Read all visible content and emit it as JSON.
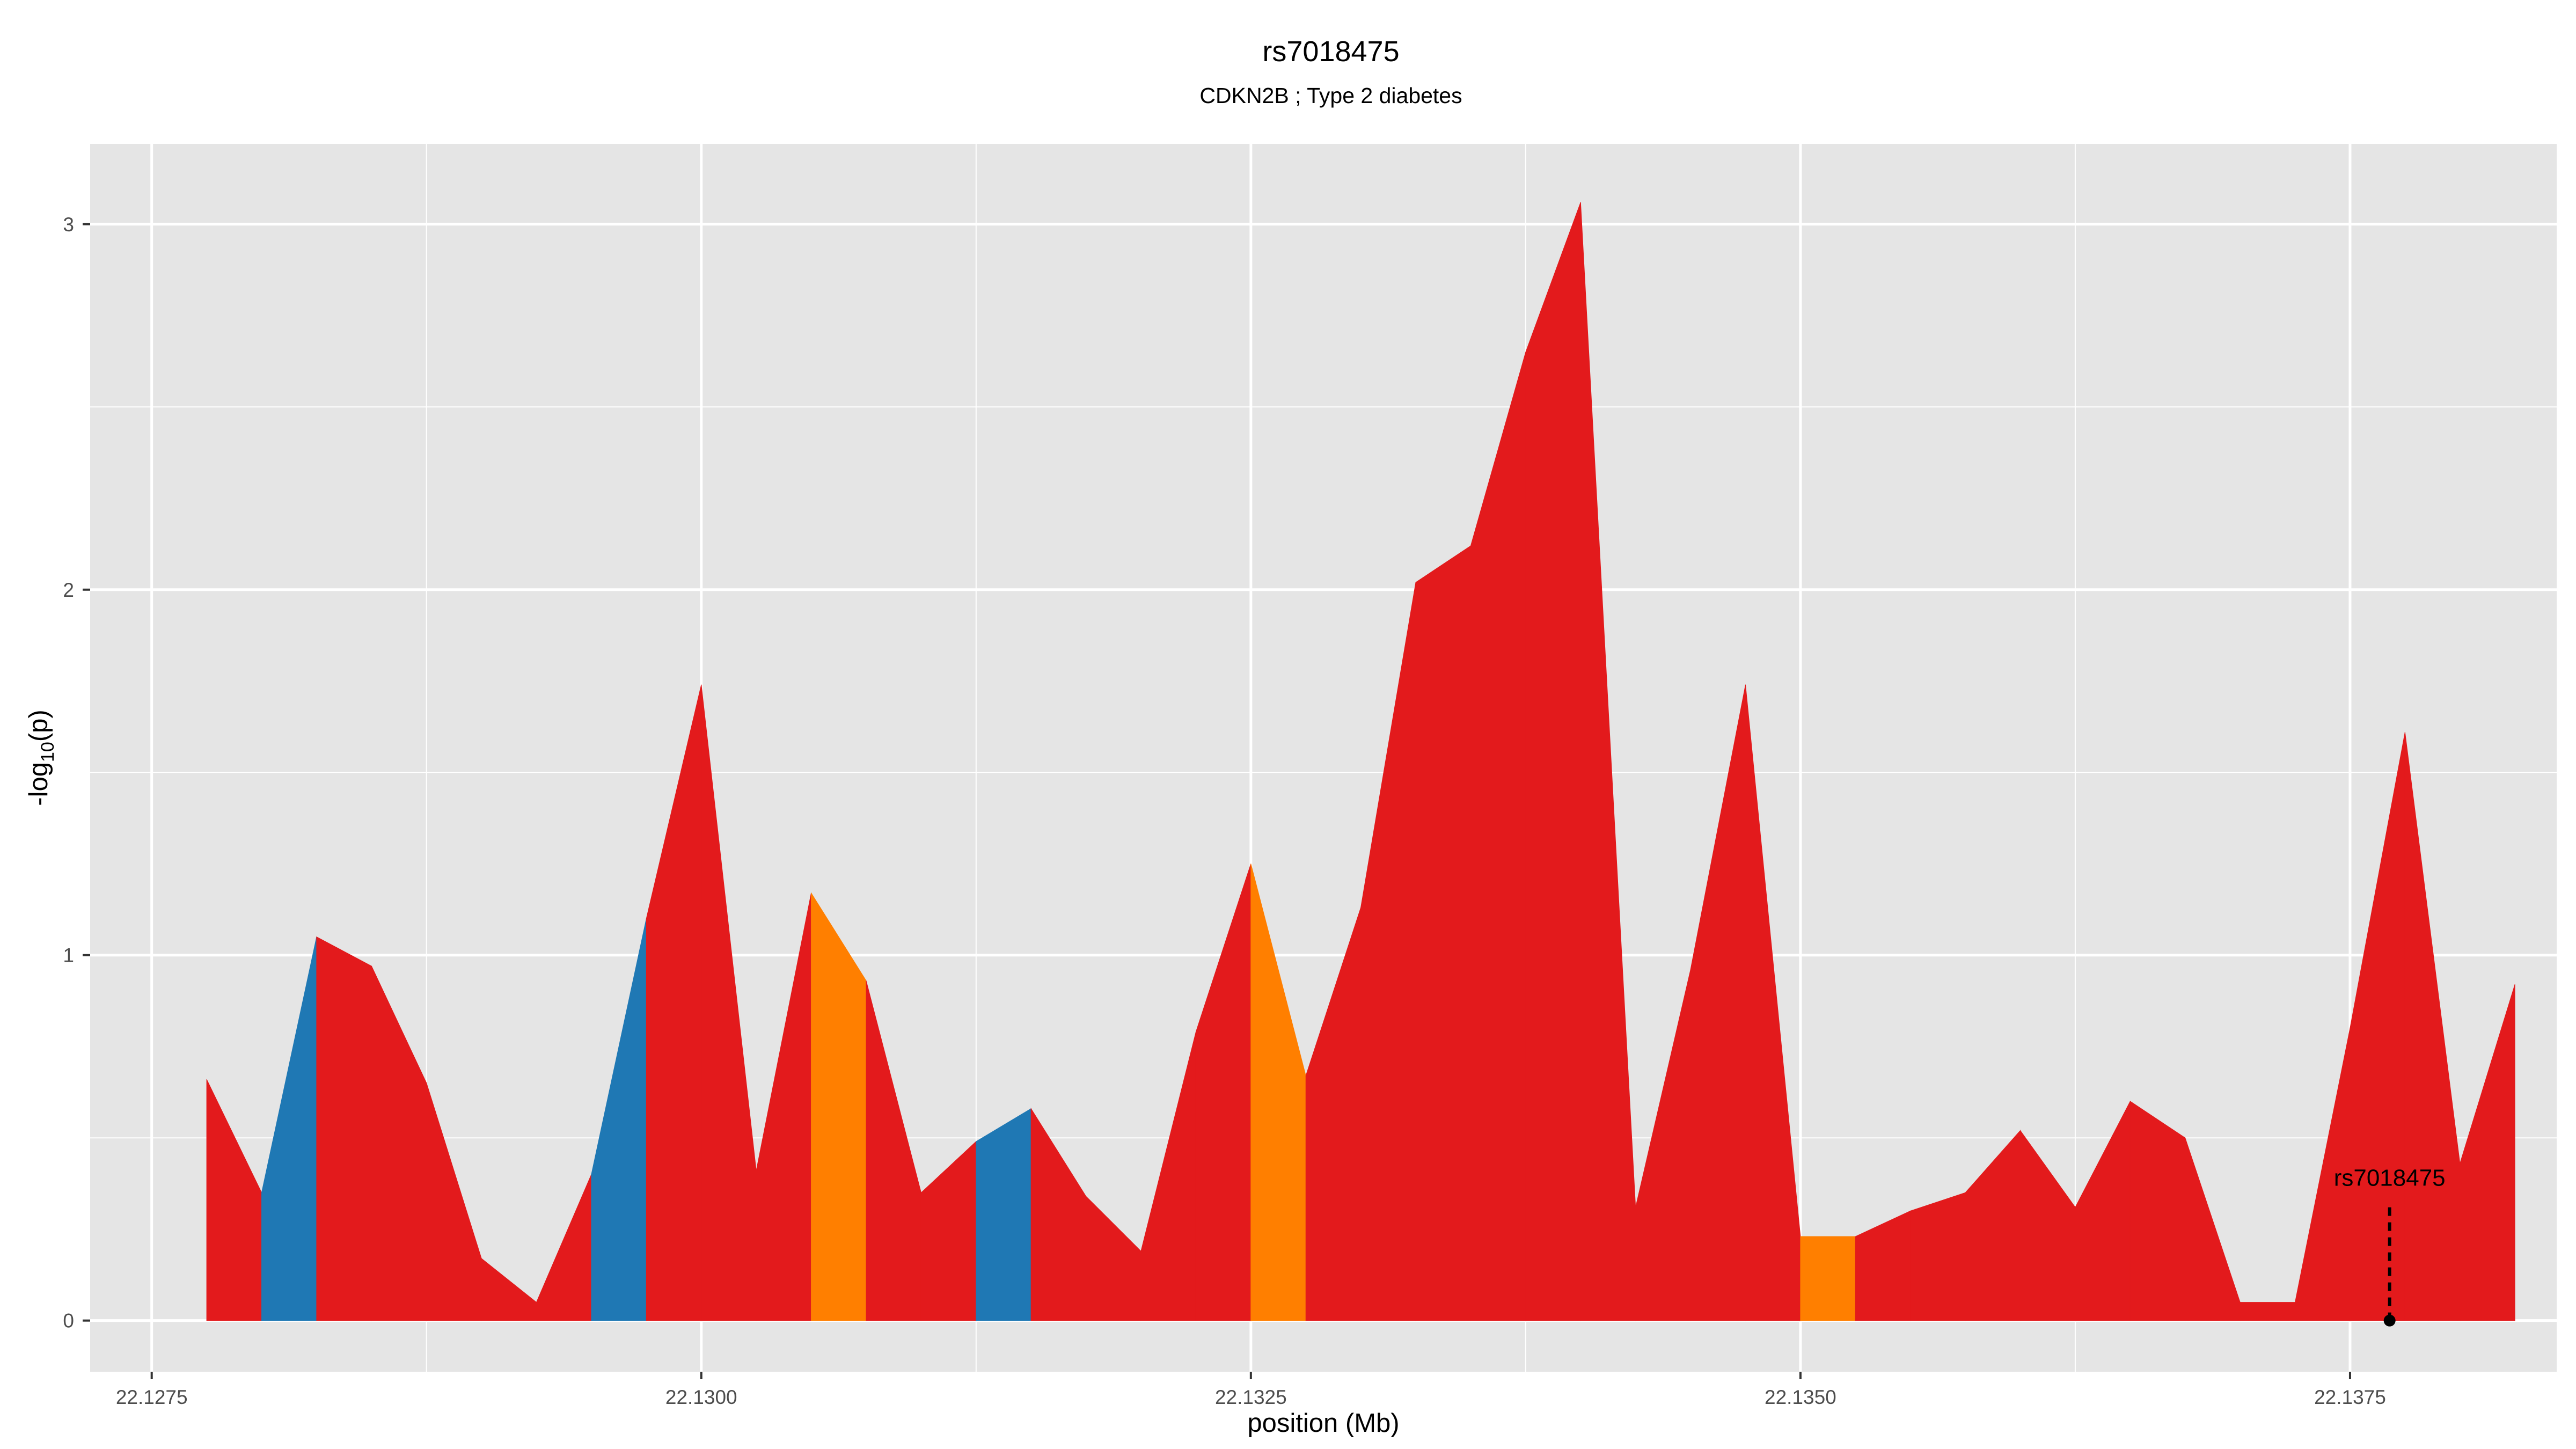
{
  "chart_data": {
    "type": "area",
    "title": "rs7018475",
    "subtitle": "CDKN2B ; Type 2 diabetes",
    "xlabel": "position (Mb)",
    "ylabel_parts": {
      "pre": "-log",
      "sub": "10",
      "post": "(p)"
    },
    "xlim": [
      22.12722,
      22.13844
    ],
    "ylim": [
      -0.14,
      3.22
    ],
    "x_ticks": [
      22.1275,
      22.13,
      22.1325,
      22.135,
      22.1375
    ],
    "x_tick_labels": [
      "22.1275",
      "22.1300",
      "22.1325",
      "22.1350",
      "22.1375"
    ],
    "y_ticks": [
      0,
      1,
      2,
      3
    ],
    "y_tick_labels": [
      "0",
      "1",
      "2",
      "3"
    ],
    "grid": true,
    "colors": {
      "red": "#e31a1c",
      "blue": "#1f78b4",
      "orange": "#ff7f00",
      "panel": "#e5e5e5",
      "grid": "#ffffff"
    },
    "x": [
      22.12775,
      22.128,
      22.12825,
      22.1285,
      22.12875,
      22.129,
      22.12925,
      22.1295,
      22.12975,
      22.13,
      22.13025,
      22.1305,
      22.13075,
      22.131,
      22.13125,
      22.1315,
      22.13175,
      22.132,
      22.13225,
      22.1325,
      22.13275,
      22.133,
      22.13325,
      22.1335,
      22.13375,
      22.134,
      22.13425,
      22.1345,
      22.13475,
      22.135,
      22.13525,
      22.1355,
      22.13575,
      22.136,
      22.13625,
      22.1365,
      22.13675,
      22.137,
      22.13725,
      22.1375,
      22.13775,
      22.138,
      22.13825
    ],
    "y": [
      0.66,
      0.35,
      1.05,
      0.97,
      0.65,
      0.17,
      0.05,
      0.4,
      1.1,
      1.74,
      0.41,
      1.17,
      0.93,
      0.35,
      0.49,
      0.58,
      0.34,
      0.19,
      0.79,
      1.25,
      0.67,
      1.13,
      2.02,
      2.12,
      2.65,
      3.06,
      0.31,
      0.96,
      1.74,
      0.23,
      0.23,
      0.3,
      0.35,
      0.52,
      0.31,
      0.6,
      0.5,
      0.05,
      0.05,
      0.8,
      1.61,
      0.43,
      0.92
    ],
    "segment_colors": [
      "red",
      "blue",
      "red",
      "red",
      "red",
      "red",
      "red",
      "blue",
      "red",
      "red",
      "red",
      "orange",
      "red",
      "red",
      "blue",
      "red",
      "red",
      "red",
      "red",
      "orange",
      "red",
      "red",
      "red",
      "red",
      "red",
      "red",
      "red",
      "red",
      "red",
      "orange",
      "red",
      "red",
      "red",
      "red",
      "red",
      "red",
      "red",
      "red",
      "red",
      "red",
      "red",
      "red"
    ],
    "annotation": {
      "label": "rs7018475",
      "x": 22.13768,
      "y": 0,
      "line_top": 0.31
    }
  }
}
